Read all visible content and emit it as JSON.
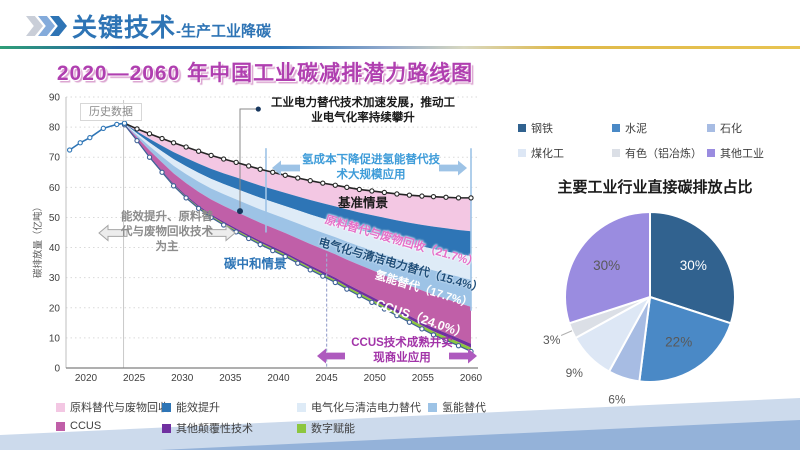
{
  "header": {
    "title": "关键技术",
    "subtitle": "-生产工业降碳"
  },
  "chart_data": [
    {
      "id": "roadmap",
      "type": "area",
      "title": "2020—2060 年中国工业碳减排潜力路线图",
      "ylabel": "碳排放量（亿吨）",
      "xlim": [
        2018,
        2060
      ],
      "ylim": [
        0,
        90
      ],
      "x_ticks": [
        2020,
        2025,
        2030,
        2035,
        2040,
        2045,
        2050,
        2055,
        2060
      ],
      "y_ticks": [
        0,
        10,
        20,
        30,
        40,
        50,
        60,
        70,
        80,
        90
      ],
      "grid": "horizontal-dotted",
      "series": {
        "historical": {
          "name": "历史数据",
          "color": "#2E75B6",
          "points": [
            [
              2018.3,
              72.4
            ],
            [
              2019.4,
              74.8
            ],
            [
              2020.4,
              76.5
            ],
            [
              2021.8,
              79.6
            ],
            [
              2023.2,
              80.9
            ],
            [
              2024,
              81.3
            ]
          ]
        },
        "baseline": {
          "name": "基准情景",
          "color": "#262626",
          "years": [
            2024,
            2025.3,
            2026.6,
            2027.9,
            2029.1,
            2030.4,
            2031.7,
            2033,
            2034.3,
            2035.6,
            2036.9,
            2038.1,
            2039.4,
            2040.7,
            2042,
            2043.3,
            2044.6,
            2045.9,
            2047.1,
            2048.4,
            2049.7,
            2051,
            2052.3,
            2053.6,
            2054.9,
            2056.1,
            2057.4,
            2058.7,
            2060
          ],
          "values": [
            81.3,
            79.4,
            77.8,
            76.2,
            74.8,
            73.4,
            72,
            70.6,
            69.4,
            68.3,
            67.1,
            66,
            65,
            64,
            63.1,
            62.2,
            61.4,
            60.7,
            60,
            59.3,
            58.8,
            58.3,
            57.8,
            57.4,
            57.1,
            56.9,
            56.7,
            56.5,
            56.5
          ]
        },
        "neutral": {
          "name": "碳中和情景",
          "color": "#3D6096",
          "years": [
            2024,
            2025.3,
            2026.6,
            2027.9,
            2029.1,
            2030.4,
            2031.7,
            2033,
            2034.3,
            2035.6,
            2036.9,
            2038.1,
            2039.4,
            2040.7,
            2042,
            2043.3,
            2044.6,
            2045.9,
            2047.1,
            2048.4,
            2049.7,
            2051,
            2052.3,
            2053.6,
            2054.9,
            2056.1,
            2057.4,
            2058.7,
            2060
          ],
          "values": [
            80.8,
            75.5,
            70,
            65,
            60.5,
            56.5,
            53,
            50,
            47.5,
            45.2,
            43,
            41,
            39,
            37,
            34.8,
            32.6,
            30.5,
            28.4,
            26.2,
            24,
            21.8,
            19.6,
            17.4,
            15.2,
            13,
            11,
            9.2,
            7.4,
            5.5
          ]
        }
      },
      "bands": [
        {
          "name": "原料替代与废物回收",
          "share_pct": 21.7,
          "color": "#F3C7E3"
        },
        {
          "name": "能效提升",
          "share_pct": 16.2,
          "color": "#2E75B6"
        },
        {
          "name": "电气化与清洁电力替代",
          "share_pct": 15.4,
          "color": "#DEEBF7"
        },
        {
          "name": "氢能替代",
          "share_pct": 17.7,
          "color": "#9DC3E6"
        },
        {
          "name": "CCUS",
          "share_pct": 24.0,
          "color": "#C05FA8"
        },
        {
          "name": "其他颠覆性技术",
          "share_pct": 2.5,
          "color": "#7030A0"
        },
        {
          "name": "数字赋能",
          "share_pct": 2.5,
          "color": "#8CC63F"
        }
      ],
      "band_labels": {
        "raw_material": "原料替代与废物回收（21.7%）",
        "electrification": "电气化与清洁电力替代（15.4%）",
        "hydrogen": "氢能替代（17.7%）",
        "ccus": "CCUS（24.0%）"
      },
      "annotations": {
        "historical": "历史数据",
        "electrification": "工业电力替代技术加速发展，推动工业电气化率持续攀升",
        "hydrogen": "氢成本下降促进氢能替代技术大规模应用",
        "efficiency": "能效提升、原料替代与废物回收技术为主",
        "ccus": "CCUS技术成熟并实现商业应用",
        "baseline_scenario": "基准情景",
        "neutral_scenario": "碳中和情景"
      }
    },
    {
      "id": "industry-pie",
      "type": "pie",
      "title": "主要工业行业直接碳排放占比",
      "direction": "clockwise",
      "start_angle_deg": 0,
      "slices": [
        {
          "label": "钢铁",
          "value_pct": 30,
          "display": "30%",
          "color": "#31628F",
          "label_color": "#FFFFFF",
          "inside": true
        },
        {
          "label": "水泥",
          "value_pct": 22,
          "display": "22%",
          "color": "#4A89C6",
          "label_color": "#595959",
          "inside": true
        },
        {
          "label": "石化",
          "value_pct": 6,
          "display": "6%",
          "color": "#A7BCE3",
          "label_color": "#595959",
          "inside": false
        },
        {
          "label": "煤化工",
          "value_pct": 9,
          "display": "9%",
          "color": "#DDE7F5",
          "label_color": "#595959",
          "inside": false
        },
        {
          "label": "有色（铝冶炼）",
          "value_pct": 3,
          "display": "3%",
          "color": "#DBDFE6",
          "label_color": "#595959",
          "inside": false,
          "leader": true
        },
        {
          "label": "其他工业",
          "value_pct": 30,
          "display": "30%",
          "color": "#9A8CE0",
          "label_color": "#595959",
          "inside": true
        }
      ]
    }
  ]
}
